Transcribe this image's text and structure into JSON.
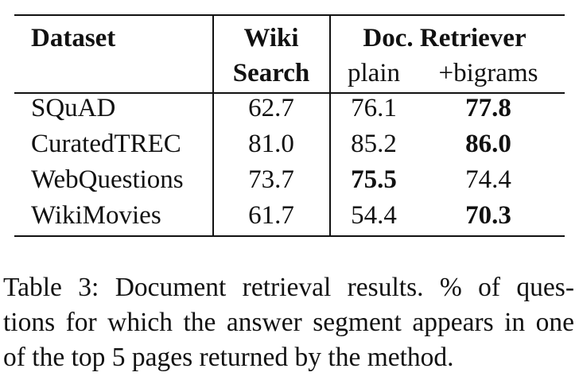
{
  "table": {
    "headers": {
      "dataset": "Dataset",
      "wiki_line1": "Wiki",
      "wiki_line2": "Search",
      "doc_retriever": "Doc. Retriever",
      "plain": "plain",
      "bigrams": "+bigrams"
    },
    "rows": [
      {
        "dataset": "SQuAD",
        "wiki": "62.7",
        "plain": "76.1",
        "bigrams": "77.8",
        "best": "bigrams"
      },
      {
        "dataset": "CuratedTREC",
        "wiki": "81.0",
        "plain": "85.2",
        "bigrams": "86.0",
        "best": "bigrams"
      },
      {
        "dataset": "WebQuestions",
        "wiki": "73.7",
        "plain": "75.5",
        "bigrams": "74.4",
        "best": "plain"
      },
      {
        "dataset": "WikiMovies",
        "wiki": "61.7",
        "plain": "54.4",
        "bigrams": "70.3",
        "best": "bigrams"
      }
    ]
  },
  "caption": {
    "line1": "Table 3:  Document retrieval results.  % of ques-",
    "line2": "tions for which the answer segment appears in one",
    "line3": "of the top 5 pages returned by the method."
  }
}
